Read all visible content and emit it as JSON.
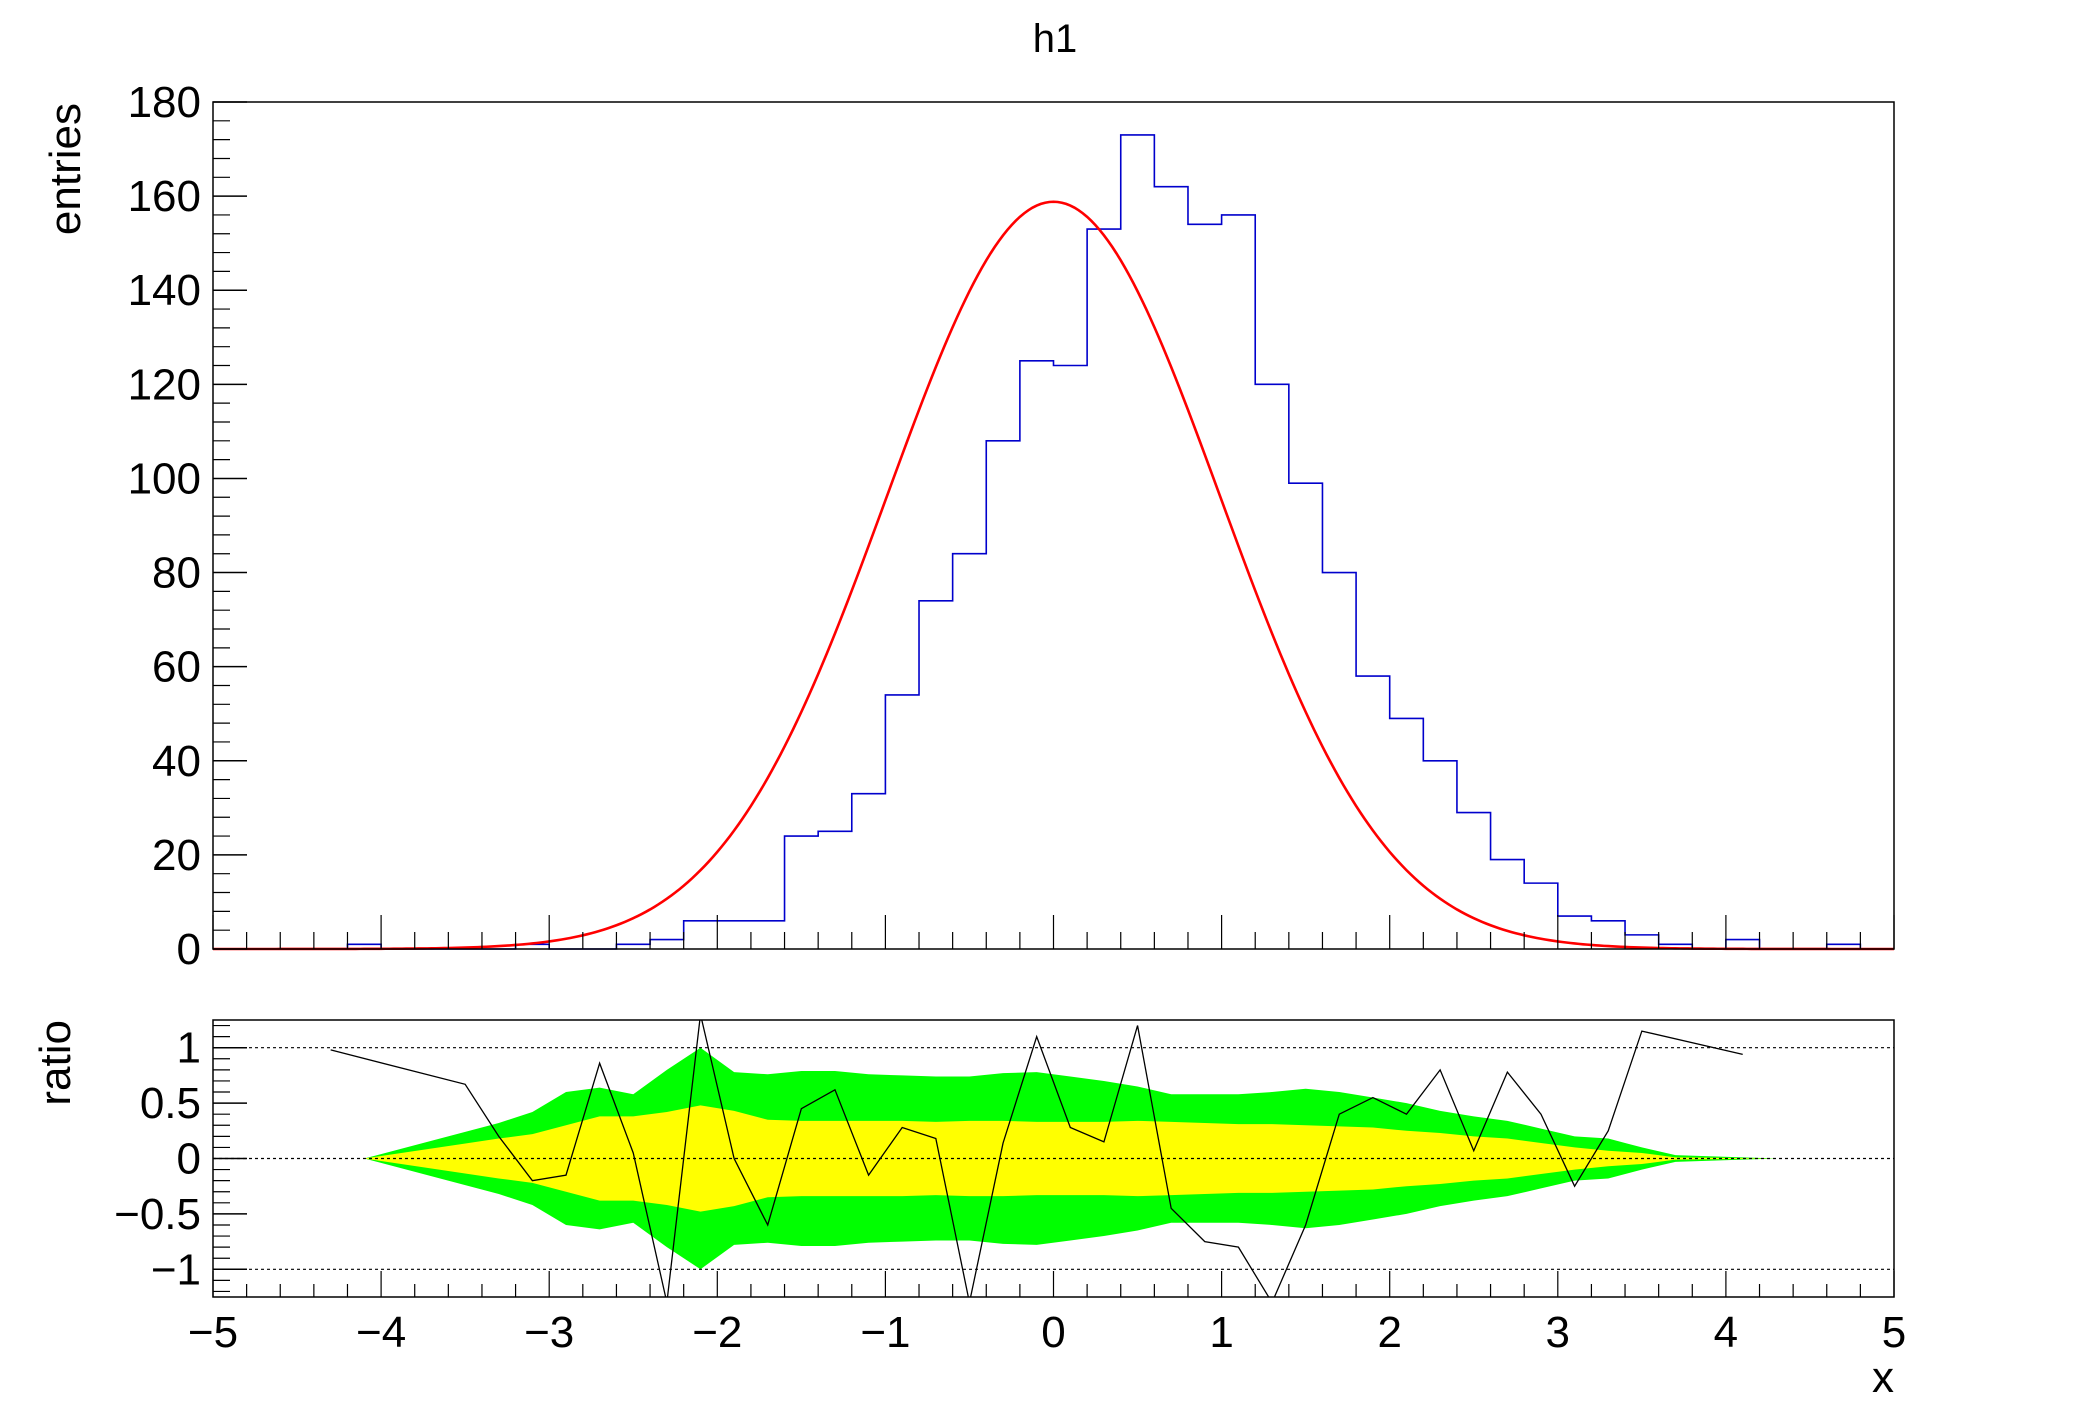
{
  "title": "h1",
  "colors": {
    "histogram": "#0000cc",
    "fit": "#ff0000",
    "band_2sigma": "#00ff00",
    "band_1sigma": "#ffff00",
    "ratio_line": "#000000",
    "frame": "#000000"
  },
  "chart_data": [
    {
      "type": "step",
      "panel": "top",
      "title": "h1",
      "xlabel": "",
      "ylabel": "entries",
      "xlim": [
        -5,
        5
      ],
      "ylim": [
        0,
        180
      ],
      "x_ticks": [
        -5,
        -4,
        -3,
        -2,
        -1,
        0,
        1,
        2,
        3,
        4,
        5
      ],
      "y_ticks": [
        0,
        20,
        40,
        60,
        80,
        100,
        120,
        140,
        160,
        180
      ],
      "grid": false,
      "bin_edges": [
        -5.0,
        -4.8,
        -4.6,
        -4.4,
        -4.2,
        -4.0,
        -3.8,
        -3.6,
        -3.4,
        -3.2,
        -3.0,
        -2.8,
        -2.6,
        -2.4,
        -2.2,
        -2.0,
        -1.8,
        -1.6,
        -1.4,
        -1.2,
        -1.0,
        -0.8,
        -0.6,
        -0.4,
        -0.2,
        0.0,
        0.2,
        0.4,
        0.6,
        0.8,
        1.0,
        1.2,
        1.4,
        1.6,
        1.8,
        2.0,
        2.2,
        2.4,
        2.6,
        2.8,
        3.0,
        3.2,
        3.4,
        3.6,
        3.8,
        4.0,
        4.2,
        4.4,
        4.6,
        4.8,
        5.0
      ],
      "series": [
        {
          "kind": "histogram",
          "counts": [
            0,
            0,
            0,
            0,
            1,
            0,
            0,
            0,
            0,
            1,
            0,
            0,
            1,
            2,
            6,
            6,
            6,
            24,
            25,
            33,
            54,
            74,
            84,
            108,
            125,
            124,
            153,
            173,
            162,
            154,
            156,
            120,
            99,
            80,
            58,
            49,
            40,
            29,
            19,
            14,
            7,
            6,
            3,
            1,
            0,
            2,
            0,
            0,
            1,
            0
          ]
        },
        {
          "kind": "fit",
          "function": "gaus",
          "constant": 158.8,
          "mean": 0.0,
          "sigma": 0.99
        }
      ]
    },
    {
      "type": "area",
      "panel": "bottom",
      "xlabel": "x",
      "ylabel": "ratio",
      "xlim": [
        -5,
        5
      ],
      "ylim": [
        -1.25,
        1.25
      ],
      "x_ticks": [
        -5,
        -4,
        -3,
        -2,
        -1,
        0,
        1,
        2,
        3,
        4,
        5
      ],
      "x_tick_labels": [
        "−5",
        "−4",
        "−3",
        "−2",
        "−1",
        "0",
        "1",
        "2",
        "3",
        "4",
        "5"
      ],
      "y_ticks": [
        -1,
        -0.5,
        0,
        0.5,
        1
      ],
      "y_tick_labels": [
        "−1",
        "−0.5",
        "0",
        "0.5",
        "1"
      ],
      "reference_lines": [
        -1,
        0,
        1
      ],
      "band_x": [
        -4.1,
        -3.3,
        -3.1,
        -2.9,
        -2.7,
        -2.5,
        -2.3,
        -2.1,
        -1.9,
        -1.7,
        -1.5,
        -1.3,
        -1.1,
        -0.9,
        -0.7,
        -0.5,
        -0.3,
        -0.1,
        0.1,
        0.3,
        0.5,
        0.7,
        0.9,
        1.1,
        1.3,
        1.5,
        1.7,
        1.9,
        2.1,
        2.3,
        2.5,
        2.7,
        2.9,
        3.1,
        3.3,
        3.5,
        3.7,
        4.3
      ],
      "band_1sigma": [
        0.0,
        0.18,
        0.22,
        0.3,
        0.38,
        0.38,
        0.42,
        0.48,
        0.43,
        0.35,
        0.34,
        0.34,
        0.34,
        0.34,
        0.33,
        0.34,
        0.34,
        0.33,
        0.33,
        0.33,
        0.34,
        0.33,
        0.32,
        0.31,
        0.31,
        0.3,
        0.29,
        0.28,
        0.25,
        0.23,
        0.2,
        0.18,
        0.14,
        0.1,
        0.07,
        0.05,
        0.01,
        0.0
      ],
      "band_2sigma": [
        0.0,
        0.32,
        0.42,
        0.6,
        0.64,
        0.58,
        0.8,
        1.0,
        0.78,
        0.76,
        0.79,
        0.79,
        0.76,
        0.75,
        0.74,
        0.74,
        0.77,
        0.78,
        0.74,
        0.7,
        0.65,
        0.58,
        0.58,
        0.58,
        0.6,
        0.63,
        0.6,
        0.55,
        0.5,
        0.43,
        0.38,
        0.34,
        0.27,
        0.2,
        0.18,
        0.1,
        0.03,
        0.0
      ],
      "series": [
        {
          "kind": "ratio",
          "x": [
            -4.3,
            -3.5,
            -3.3,
            -3.1,
            -2.9,
            -2.7,
            -2.5,
            -2.3,
            -2.1,
            -1.9,
            -1.7,
            -1.5,
            -1.3,
            -1.1,
            -0.9,
            -0.7,
            -0.5,
            -0.3,
            -0.1,
            0.1,
            0.3,
            0.5,
            0.7,
            0.9,
            1.1,
            1.3,
            1.5,
            1.7,
            1.9,
            2.1,
            2.3,
            2.5,
            2.7,
            2.9,
            3.1,
            3.3,
            3.5,
            4.1
          ],
          "y": [
            0.98,
            0.67,
            0.2,
            -0.2,
            -0.15,
            0.86,
            0.05,
            -1.3,
            1.3,
            0.0,
            -0.6,
            0.45,
            0.62,
            -0.15,
            0.28,
            0.18,
            -1.3,
            0.14,
            1.1,
            0.28,
            0.15,
            1.2,
            -0.45,
            -0.75,
            -0.8,
            -1.3,
            -0.6,
            0.4,
            0.55,
            0.4,
            0.8,
            0.07,
            0.78,
            0.4,
            -0.25,
            0.25,
            1.15,
            0.94
          ]
        }
      ]
    }
  ]
}
